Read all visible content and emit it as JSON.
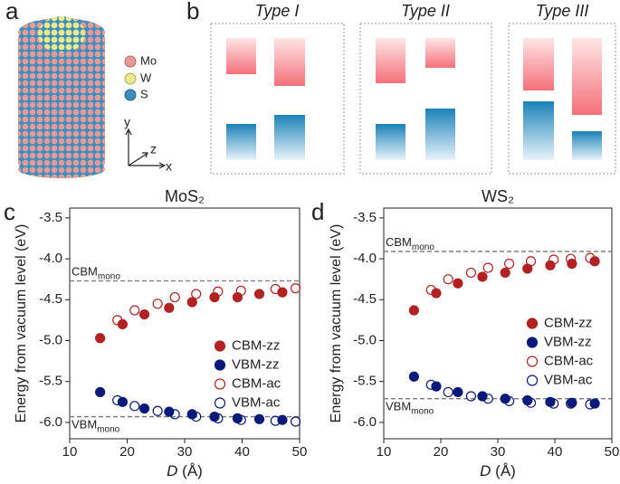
{
  "panel_labels": [
    "a",
    "b",
    "c",
    "d"
  ],
  "illustration": {
    "legend": [
      "Mo",
      "W",
      "S"
    ],
    "axes": [
      "y",
      "z",
      "x"
    ]
  },
  "band_types": [
    "Type I",
    "Type II",
    "Type III"
  ],
  "chart_data": [
    {
      "type": "scatter",
      "title": "MoS₂",
      "xlabel": [
        "D",
        " (Å)"
      ],
      "ylabel": "Energy from vacuum level (eV)",
      "xlim": [
        10,
        50
      ],
      "xticks": [
        10,
        20,
        30,
        40,
        50
      ],
      "ylim": [
        -6.2,
        -3.38
      ],
      "yticks": [
        -6.0,
        -5.5,
        -5.0,
        -4.5,
        -4.0,
        -3.5
      ],
      "legend": "center right",
      "annotations": [
        {
          "text": "CBM",
          "sub": "mono",
          "y": -4.27
        },
        {
          "text": "VBM",
          "sub": "mono",
          "y": -5.93
        }
      ],
      "series": [
        {
          "name": "CBM-zz",
          "color": "#b22222",
          "filled": true,
          "x": [
            15.3,
            19.2,
            23,
            27.3,
            31.3,
            35.2,
            39.2,
            43,
            47
          ],
          "values": [
            -4.97,
            -4.8,
            -4.68,
            -4.6,
            -4.53,
            -4.47,
            -4.47,
            -4.43,
            -4.41
          ]
        },
        {
          "name": "VBM-zz",
          "color": "#0a1a7a",
          "filled": true,
          "x": [
            15.3,
            19.2,
            23,
            27.3,
            31.3,
            35.2,
            39.2,
            43,
            47
          ],
          "values": [
            -5.63,
            -5.75,
            -5.83,
            -5.87,
            -5.9,
            -5.93,
            -5.95,
            -5.96,
            -5.97
          ]
        },
        {
          "name": "CBM-ac",
          "color": "#b22222",
          "filled": false,
          "x": [
            18.3,
            21.3,
            25.3,
            28.3,
            32,
            35.8,
            39.8,
            45.8,
            49.3
          ],
          "values": [
            -4.75,
            -4.63,
            -4.55,
            -4.47,
            -4.43,
            -4.4,
            -4.39,
            -4.37,
            -4.36
          ]
        },
        {
          "name": "VBM-ac",
          "color": "#0a1a7a",
          "filled": false,
          "x": [
            18.3,
            21.3,
            25.3,
            28.3,
            32,
            35.8,
            39.8,
            45.8,
            49.3
          ],
          "values": [
            -5.73,
            -5.8,
            -5.86,
            -5.9,
            -5.93,
            -5.95,
            -5.97,
            -5.98,
            -5.99
          ]
        }
      ]
    },
    {
      "type": "scatter",
      "title": "WS₂",
      "xlabel": [
        "D",
        " (Å)"
      ],
      "ylabel": "Energy from vacuum level (eV)",
      "xlim": [
        10,
        50
      ],
      "xticks": [
        10,
        20,
        30,
        40,
        50
      ],
      "ylim": [
        -6.2,
        -3.38
      ],
      "yticks": [
        -6.0,
        -5.5,
        -5.0,
        -4.5,
        -4.0,
        -3.5
      ],
      "legend": "center right",
      "annotations": [
        {
          "text": "CBM",
          "sub": "mono",
          "y": -3.91
        },
        {
          "text": "VBM",
          "sub": "mono",
          "y": -5.71
        }
      ],
      "series": [
        {
          "name": "CBM-zz",
          "color": "#b22222",
          "filled": true,
          "x": [
            15.3,
            19.2,
            23,
            27.3,
            31.3,
            35.2,
            39.2,
            43,
            47
          ],
          "values": [
            -4.63,
            -4.42,
            -4.3,
            -4.22,
            -4.17,
            -4.12,
            -4.08,
            -4.06,
            -4.03
          ]
        },
        {
          "name": "VBM-zz",
          "color": "#0a1a7a",
          "filled": true,
          "x": [
            15.3,
            19.2,
            23,
            27.3,
            31.3,
            35.2,
            39.2,
            43,
            47
          ],
          "values": [
            -5.44,
            -5.56,
            -5.63,
            -5.68,
            -5.71,
            -5.73,
            -5.75,
            -5.76,
            -5.77
          ]
        },
        {
          "name": "CBM-ac",
          "color": "#b22222",
          "filled": false,
          "x": [
            18.3,
            21.3,
            25.3,
            28.3,
            32,
            35.8,
            39.8,
            42.8,
            46.2
          ],
          "values": [
            -4.38,
            -4.25,
            -4.17,
            -4.11,
            -4.06,
            -4.03,
            -4.01,
            -4.0,
            -3.99
          ]
        },
        {
          "name": "VBM-ac",
          "color": "#0a1a7a",
          "filled": false,
          "x": [
            18.3,
            21.3,
            25.3,
            28.3,
            32,
            35.8,
            39.8,
            42.8,
            46.2
          ],
          "values": [
            -5.54,
            -5.63,
            -5.68,
            -5.71,
            -5.74,
            -5.76,
            -5.77,
            -5.77,
            -5.78
          ]
        }
      ]
    }
  ]
}
